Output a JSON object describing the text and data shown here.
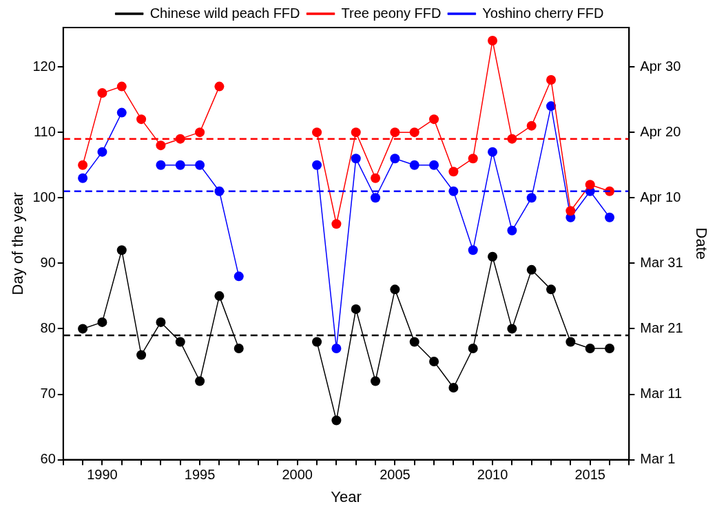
{
  "chart_data": {
    "type": "line",
    "xlabel": "Year",
    "ylabel": "Day of the year",
    "y2label": "Date",
    "x": [
      1989,
      1990,
      1991,
      1992,
      1993,
      1994,
      1995,
      1996,
      1997,
      1998,
      1999,
      2000,
      2001,
      2002,
      2003,
      2004,
      2005,
      2006,
      2007,
      2008,
      2009,
      2010,
      2011,
      2012,
      2013,
      2014,
      2015,
      2016
    ],
    "series": [
      {
        "name": "Chinese wild peach FFD",
        "color": "#000000",
        "values": [
          80,
          81,
          92,
          76,
          81,
          78,
          72,
          85,
          77,
          null,
          null,
          null,
          78,
          66,
          83,
          72,
          86,
          78,
          75,
          71,
          77,
          91,
          80,
          89,
          86,
          78,
          77,
          77
        ]
      },
      {
        "name": "Tree peony FFD",
        "color": "#ff0000",
        "values": [
          105,
          116,
          117,
          112,
          108,
          109,
          110,
          117,
          null,
          null,
          null,
          null,
          110,
          96,
          110,
          103,
          110,
          110,
          112,
          104,
          106,
          124,
          109,
          111,
          118,
          98,
          102,
          101
        ]
      },
      {
        "name": "Yoshino cherry FFD",
        "color": "#0000ff",
        "values": [
          103,
          107,
          113,
          null,
          105,
          105,
          105,
          101,
          88,
          null,
          null,
          null,
          105,
          77,
          106,
          100,
          106,
          105,
          105,
          101,
          92,
          107,
          95,
          100,
          114,
          97,
          101,
          97
        ]
      }
    ],
    "xlim": [
      1988,
      2017
    ],
    "xticks": [
      {
        "value": 1988,
        "label": null
      },
      {
        "value": 1989,
        "label": null
      },
      1990,
      {
        "value": 1991,
        "label": null
      },
      {
        "value": 1992,
        "label": null
      },
      {
        "value": 1993,
        "label": null
      },
      {
        "value": 1994,
        "label": null
      },
      1995,
      {
        "value": 1996,
        "label": null
      },
      {
        "value": 1997,
        "label": null
      },
      {
        "value": 1998,
        "label": null
      },
      {
        "value": 1999,
        "label": null
      },
      2000,
      {
        "value": 2001,
        "label": null
      },
      {
        "value": 2002,
        "label": null
      },
      {
        "value": 2003,
        "label": null
      },
      {
        "value": 2004,
        "label": null
      },
      2005,
      {
        "value": 2006,
        "label": null
      },
      {
        "value": 2007,
        "label": null
      },
      {
        "value": 2008,
        "label": null
      },
      {
        "value": 2009,
        "label": null
      },
      2010,
      {
        "value": 2011,
        "label": null
      },
      {
        "value": 2012,
        "label": null
      },
      {
        "value": 2013,
        "label": null
      },
      {
        "value": 2014,
        "label": null
      },
      2015,
      {
        "value": 2016,
        "label": null
      },
      {
        "value": 2017,
        "label": null
      }
    ],
    "ylim": [
      60,
      126
    ],
    "yticks": [
      60,
      70,
      80,
      90,
      100,
      110,
      120
    ],
    "y2lim": [
      "--03-01",
      "--05-06"
    ],
    "y2ticks": [
      {
        "value": "--03-01",
        "label": "Mar 1"
      },
      {
        "value": "--03-11",
        "label": "Mar 11"
      },
      {
        "value": "--03-21",
        "label": "Mar 21"
      },
      {
        "value": "--03-31",
        "label": "Mar 31"
      },
      {
        "value": "--04-10",
        "label": "Apr 10"
      },
      {
        "value": "--04-20",
        "label": "Apr 20"
      },
      {
        "value": "--04-30",
        "label": "Apr 30"
      }
    ],
    "ref_lines": [
      {
        "axis": "y",
        "value": 109,
        "color": "#ff0000",
        "line_style": "dashed"
      },
      {
        "axis": "y",
        "value": 101,
        "color": "#0000ff",
        "line_style": "dashed"
      },
      {
        "axis": "y",
        "value": 79,
        "color": "#000000",
        "line_style": "dashed"
      }
    ],
    "legend": "top",
    "marker": "circle",
    "line_style": "solid",
    "grid": false
  }
}
